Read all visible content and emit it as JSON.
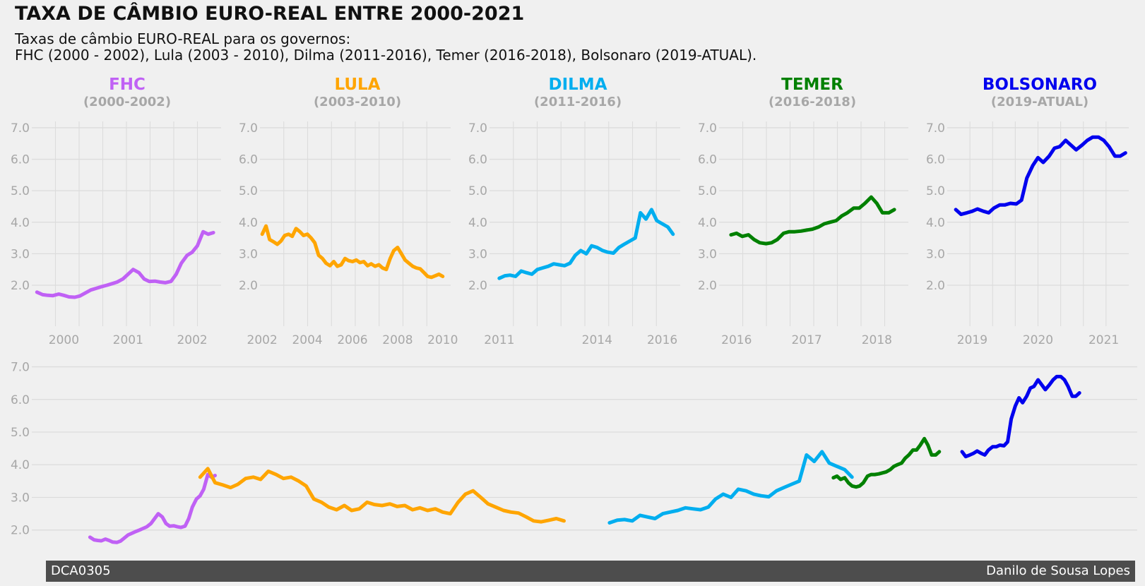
{
  "title": "TAXA DE CÂMBIO EURO-REAL ENTRE 2000-2021",
  "subtitle_lines": [
    "Taxas de câmbio EURO-REAL para os governos:",
    "FHC (2000 - 2002), Lula (2003 - 2010), Dilma (2011-2016), Temer (2016-2018), Bolsonaro (2019-ATUAL)."
  ],
  "footer": {
    "left": "DCA0305",
    "right": "Danilo de Sousa Lopes"
  },
  "colors": {
    "background": "#f0f0f0",
    "grid": "#dcdcdc",
    "tick_text": "#a7a7a7",
    "footer_bg": "#4d4d4d",
    "footer_text": "#ffffff"
  },
  "chart_data": [
    {
      "type": "line",
      "government": "FHC",
      "period": "(2000-2002)",
      "color": "#c061f5",
      "ylim": [
        0.7,
        7.2
      ],
      "yticks": [
        2.0,
        3.0,
        4.0,
        5.0,
        6.0,
        7.0
      ],
      "ytick_labels": [
        "2.0",
        "3.0",
        "4.0",
        "5.0",
        "6.0",
        "7.0"
      ],
      "xlim": [
        1999.5,
        2002.45
      ],
      "xticks": [
        2000,
        2001,
        2002
      ],
      "xtick_labels": [
        "2000",
        "2001",
        "2002"
      ],
      "grid": true,
      "x": [
        1999.58,
        1999.67,
        1999.75,
        1999.83,
        1999.92,
        2000.0,
        2000.08,
        2000.17,
        2000.25,
        2000.33,
        2000.42,
        2000.5,
        2000.58,
        2000.67,
        2000.75,
        2000.83,
        2000.92,
        2001.0,
        2001.08,
        2001.17,
        2001.25,
        2001.33,
        2001.42,
        2001.5,
        2001.58,
        2001.67,
        2001.75,
        2001.83,
        2001.92,
        2002.0,
        2002.08,
        2002.17,
        2002.25,
        2002.33
      ],
      "y": [
        1.78,
        1.7,
        1.68,
        1.67,
        1.72,
        1.68,
        1.63,
        1.62,
        1.66,
        1.75,
        1.85,
        1.9,
        1.95,
        2.0,
        2.05,
        2.1,
        2.2,
        2.35,
        2.5,
        2.4,
        2.2,
        2.12,
        2.13,
        2.1,
        2.08,
        2.12,
        2.35,
        2.7,
        2.95,
        3.05,
        3.25,
        3.7,
        3.62,
        3.67
      ]
    },
    {
      "type": "line",
      "government": "LULA",
      "period": "(2003-2010)",
      "color": "#ffa500",
      "ylim": [
        0.7,
        7.2
      ],
      "yticks": [
        2.0,
        3.0,
        4.0,
        5.0,
        6.0,
        7.0
      ],
      "ytick_labels": [
        "2.0",
        "3.0",
        "4.0",
        "5.0",
        "6.0",
        "7.0"
      ],
      "xlim": [
        2001.9,
        2010.35
      ],
      "xticks": [
        2002,
        2004,
        2006,
        2008,
        2010
      ],
      "xtick_labels": [
        "2002",
        "2004",
        "2006",
        "2008",
        "2010"
      ],
      "grid": true,
      "x": [
        2002.0,
        2002.17,
        2002.33,
        2002.5,
        2002.67,
        2002.83,
        2003.0,
        2003.17,
        2003.33,
        2003.5,
        2003.67,
        2003.83,
        2004.0,
        2004.17,
        2004.33,
        2004.5,
        2004.67,
        2004.83,
        2005.0,
        2005.17,
        2005.33,
        2005.5,
        2005.67,
        2005.83,
        2006.0,
        2006.17,
        2006.33,
        2006.5,
        2006.67,
        2006.83,
        2007.0,
        2007.17,
        2007.33,
        2007.5,
        2007.67,
        2007.83,
        2008.0,
        2008.17,
        2008.33,
        2008.5,
        2008.67,
        2008.83,
        2009.0,
        2009.17,
        2009.33,
        2009.5,
        2009.67,
        2009.83,
        2010.0
      ],
      "y": [
        3.62,
        3.88,
        3.45,
        3.38,
        3.3,
        3.4,
        3.58,
        3.62,
        3.55,
        3.8,
        3.7,
        3.58,
        3.62,
        3.5,
        3.35,
        2.95,
        2.85,
        2.7,
        2.62,
        2.75,
        2.6,
        2.65,
        2.85,
        2.78,
        2.75,
        2.8,
        2.72,
        2.75,
        2.62,
        2.68,
        2.6,
        2.65,
        2.55,
        2.5,
        2.85,
        3.1,
        3.2,
        3.0,
        2.8,
        2.7,
        2.6,
        2.55,
        2.52,
        2.4,
        2.28,
        2.25,
        2.3,
        2.35,
        2.28
      ]
    },
    {
      "type": "line",
      "government": "DILMA",
      "period": "(2011-2016)",
      "color": "#00aeef",
      "ylim": [
        0.7,
        7.2
      ],
      "yticks": [
        2.0,
        3.0,
        4.0,
        5.0,
        6.0,
        7.0
      ],
      "ytick_labels": [
        "2.0",
        "3.0",
        "4.0",
        "5.0",
        "6.0",
        "7.0"
      ],
      "xlim": [
        2010.7,
        2016.55
      ],
      "xticks": [
        2011,
        2014,
        2016
      ],
      "xtick_labels": [
        "2011",
        "2014",
        "2016"
      ],
      "grid": true,
      "x": [
        2011.0,
        2011.17,
        2011.33,
        2011.5,
        2011.67,
        2011.83,
        2012.0,
        2012.17,
        2012.33,
        2012.5,
        2012.67,
        2012.83,
        2013.0,
        2013.17,
        2013.33,
        2013.5,
        2013.67,
        2013.83,
        2014.0,
        2014.17,
        2014.33,
        2014.5,
        2014.67,
        2014.83,
        2015.0,
        2015.17,
        2015.33,
        2015.5,
        2015.67,
        2015.83,
        2016.0,
        2016.17,
        2016.33
      ],
      "y": [
        2.22,
        2.3,
        2.32,
        2.28,
        2.45,
        2.4,
        2.35,
        2.5,
        2.55,
        2.6,
        2.68,
        2.65,
        2.62,
        2.7,
        2.95,
        3.1,
        3.0,
        3.25,
        3.2,
        3.1,
        3.05,
        3.02,
        3.2,
        3.3,
        3.4,
        3.5,
        4.3,
        4.1,
        4.4,
        4.05,
        3.95,
        3.85,
        3.62
      ]
    },
    {
      "type": "line",
      "government": "TEMER",
      "period": "(2016-2018)",
      "color": "#008000",
      "ylim": [
        0.7,
        7.2
      ],
      "yticks": [
        2.0,
        3.0,
        4.0,
        5.0,
        6.0,
        7.0
      ],
      "ytick_labels": [
        "2.0",
        "3.0",
        "4.0",
        "5.0",
        "6.0",
        "7.0"
      ],
      "xlim": [
        2015.75,
        2018.45
      ],
      "xticks": [
        2016,
        2017,
        2018
      ],
      "xtick_labels": [
        "2016",
        "2017",
        "2018"
      ],
      "grid": true,
      "x": [
        2015.92,
        2016.0,
        2016.08,
        2016.17,
        2016.25,
        2016.33,
        2016.42,
        2016.5,
        2016.58,
        2016.67,
        2016.75,
        2016.83,
        2016.92,
        2017.0,
        2017.08,
        2017.17,
        2017.25,
        2017.33,
        2017.42,
        2017.5,
        2017.58,
        2017.67,
        2017.75,
        2017.83,
        2017.92,
        2018.0,
        2018.08,
        2018.17,
        2018.25
      ],
      "y": [
        3.6,
        3.65,
        3.55,
        3.6,
        3.45,
        3.35,
        3.32,
        3.35,
        3.45,
        3.65,
        3.7,
        3.7,
        3.72,
        3.75,
        3.78,
        3.85,
        3.95,
        4.0,
        4.05,
        4.2,
        4.3,
        4.45,
        4.45,
        4.6,
        4.8,
        4.6,
        4.3,
        4.3,
        4.4
      ]
    },
    {
      "type": "line",
      "government": "BOLSONARO",
      "period": "(2019-ATUAL)",
      "color": "#0000ee",
      "ylim": [
        0.7,
        7.2
      ],
      "yticks": [
        2.0,
        3.0,
        4.0,
        5.0,
        6.0,
        7.0
      ],
      "ytick_labels": [
        "2.0",
        "3.0",
        "4.0",
        "5.0",
        "6.0",
        "7.0"
      ],
      "xlim": [
        2018.62,
        2021.38
      ],
      "xticks": [
        2019,
        2020,
        2021
      ],
      "xtick_labels": [
        "2019",
        "2020",
        "2021"
      ],
      "grid": true,
      "x": [
        2018.75,
        2018.83,
        2018.92,
        2019.0,
        2019.08,
        2019.17,
        2019.25,
        2019.33,
        2019.42,
        2019.5,
        2019.58,
        2019.67,
        2019.75,
        2019.83,
        2019.92,
        2020.0,
        2020.08,
        2020.17,
        2020.25,
        2020.33,
        2020.42,
        2020.5,
        2020.58,
        2020.67,
        2020.75,
        2020.83,
        2020.92,
        2021.0,
        2021.08,
        2021.17,
        2021.25,
        2021.33
      ],
      "y": [
        4.4,
        4.25,
        4.3,
        4.35,
        4.42,
        4.35,
        4.3,
        4.45,
        4.55,
        4.55,
        4.6,
        4.58,
        4.7,
        5.4,
        5.8,
        6.05,
        5.9,
        6.1,
        6.35,
        6.4,
        6.6,
        6.45,
        6.3,
        6.45,
        6.6,
        6.7,
        6.7,
        6.6,
        6.4,
        6.1,
        6.1,
        6.2
      ]
    },
    {
      "type": "line",
      "government": "",
      "period": "",
      "color": "",
      "ylim": [
        1.15,
        7.25
      ],
      "yticks": [
        2.0,
        3.0,
        4.0,
        5.0,
        6.0,
        7.0
      ],
      "ytick_labels": [
        "2.0",
        "3.0",
        "4.0",
        "5.0",
        "6.0",
        "7.0"
      ],
      "xlim": [
        1998.3,
        2022.6
      ],
      "xticks": [],
      "xtick_labels": [],
      "grid": true,
      "combined": true
    }
  ]
}
